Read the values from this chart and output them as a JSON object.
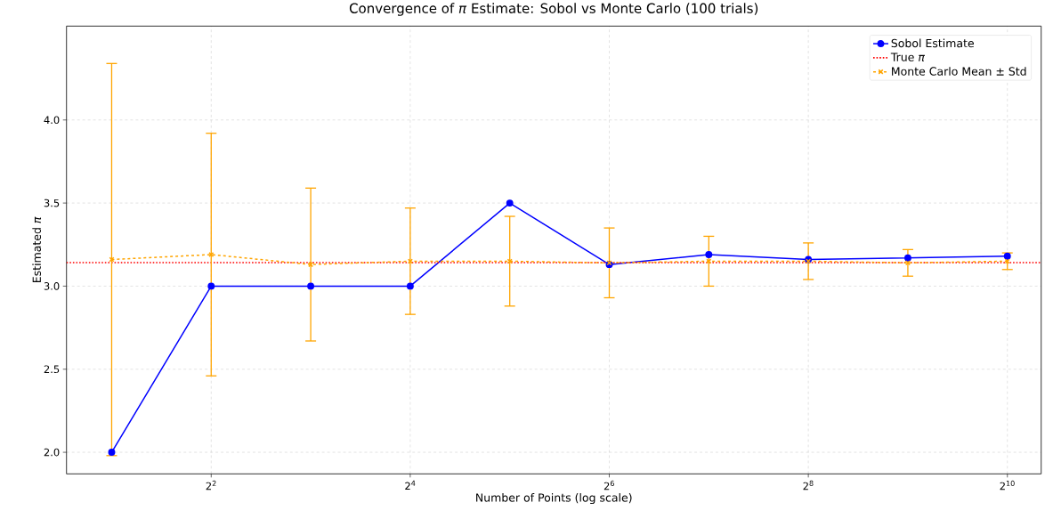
{
  "chart_data": {
    "type": "line",
    "title": "Convergence of *π* Estimate: Sobol vs Monte Carlo (100 trials)",
    "xlabel": "Number of Points (log scale)",
    "ylabel": "Estimated *π*",
    "log": "x",
    "grid": true,
    "legend": "top right",
    "xlim": [
      1.46,
      1296
    ],
    "ylim": [
      1.87,
      4.565
    ],
    "xticks": [
      {
        "value": 4,
        "label": "2$^{2}$"
      },
      {
        "value": 16,
        "label": "2$^{4}$"
      },
      {
        "value": 64,
        "label": "2$^{6}$"
      },
      {
        "value": 256,
        "label": "2$^{8}$"
      },
      {
        "value": 1024,
        "label": "2$^{10}$"
      }
    ],
    "yticks": [
      {
        "value": 2,
        "label": "2.0"
      },
      {
        "value": 2.5,
        "label": "2.5"
      },
      {
        "value": 3,
        "label": "3.0"
      },
      {
        "value": 3.5,
        "label": "3.5"
      },
      {
        "value": 4,
        "label": "4.0"
      }
    ],
    "x": [
      2,
      4,
      8,
      16,
      32,
      64,
      128,
      256,
      512,
      1024
    ],
    "series": [
      {
        "name": "Sobol Estimate",
        "color": "#0000ff",
        "marker": "circle",
        "line_style": "solid",
        "values": [
          2.0,
          3.0,
          3.0,
          3.0,
          3.5,
          3.13,
          3.19,
          3.16,
          3.17,
          3.18
        ]
      },
      {
        "name": "Monte Carlo Mean ± Std",
        "color": "#ffa500",
        "marker": "cross",
        "line_style": "dashed",
        "values": [
          3.16,
          3.19,
          3.13,
          3.15,
          3.15,
          3.14,
          3.15,
          3.15,
          3.14,
          3.15
        ],
        "errors": [
          1.18,
          0.73,
          0.46,
          0.32,
          0.27,
          0.21,
          0.15,
          0.11,
          0.08,
          0.05
        ]
      }
    ],
    "ref_lines": [
      {
        "axis": "y",
        "value": 3.1416,
        "label": "True *π*",
        "color": "#ff0000",
        "line_style": "dotted"
      }
    ]
  }
}
